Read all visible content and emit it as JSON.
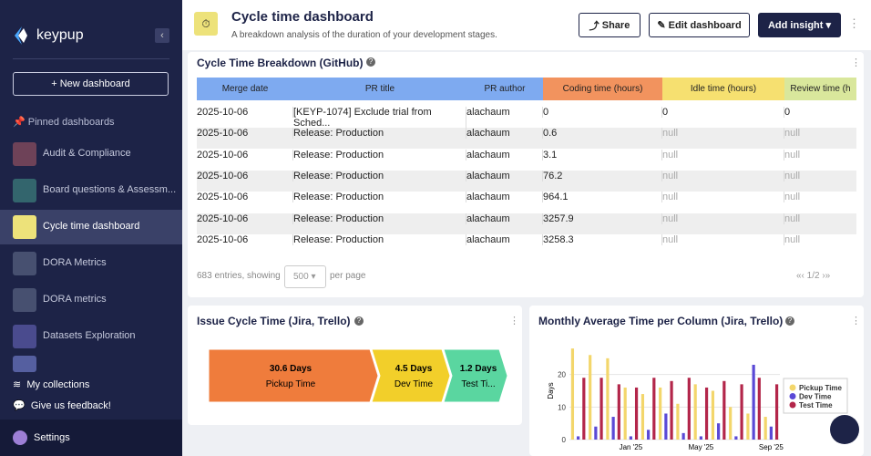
{
  "sidebar": {
    "brand": "keypup",
    "new_dashboard": "New dashboard",
    "pinned": "Pinned dashboards",
    "items": [
      {
        "label": "Audit & Compliance",
        "color": "#8a4d5e"
      },
      {
        "label": "Board questions & Assessm...",
        "color": "#3b7c7a"
      },
      {
        "label": "Cycle time dashboard",
        "color": "#ede27a"
      },
      {
        "label": "DORA Metrics",
        "color": "#55607e"
      },
      {
        "label": "DORA metrics",
        "color": "#55607e"
      },
      {
        "label": "Datasets Exploration",
        "color": "#5a5aa6"
      }
    ],
    "collections": "My collections",
    "feedback": "Give us feedback!",
    "settings": "Settings"
  },
  "header": {
    "title": "Cycle time dashboard",
    "subtitle": "A breakdown analysis of the duration of your development stages.",
    "share": "Share",
    "edit": "Edit dashboard",
    "add": "Add insight"
  },
  "table_panel": {
    "title": "Cycle Time Breakdown (GitHub)",
    "columns": [
      {
        "label": "Merge date",
        "color": "#7eaaf0"
      },
      {
        "label": "PR title",
        "color": "#7eaaf0"
      },
      {
        "label": "PR author",
        "color": "#7eaaf0"
      },
      {
        "label": "Coding time (hours)",
        "color": "#f2935e"
      },
      {
        "label": "Idle time (hours)",
        "color": "#f6e070"
      },
      {
        "label": "Review time (h",
        "color": "#d9e79c"
      }
    ],
    "rows": [
      [
        "2025-10-06",
        "[KEYP-1074] Exclude trial from Sched...",
        "alachaum",
        0,
        0,
        0
      ],
      [
        "2025-10-06",
        "Release: Production",
        "alachaum",
        0.6,
        "null",
        "null"
      ],
      [
        "2025-10-06",
        "Release: Production",
        "alachaum",
        3.1,
        "null",
        "null"
      ],
      [
        "2025-10-06",
        "Release: Production",
        "alachaum",
        76.2,
        "null",
        "null"
      ],
      [
        "2025-10-06",
        "Release: Production",
        "alachaum",
        964.1,
        "null",
        "null"
      ],
      [
        "2025-10-06",
        "Release: Production",
        "alachaum",
        3257.9,
        "null",
        "null"
      ],
      [
        "2025-10-06",
        "Release: Production",
        "alachaum",
        3258.3,
        "null",
        "null"
      ]
    ],
    "footer": {
      "entries": "683 entries, showing",
      "page_size": "500",
      "per_page": "per page",
      "page": "1/2"
    }
  },
  "funnel": {
    "title": "Issue Cycle Time (Jira, Trello)",
    "stages": [
      {
        "value": "30.6 Days",
        "label": "Pickup Time",
        "color": "#ef7c3c"
      },
      {
        "value": "4.5 Days",
        "label": "Dev Time",
        "color": "#f2cf2a"
      },
      {
        "value": "1.2 Days",
        "label": "Test Ti...",
        "color": "#5ad6a0"
      }
    ]
  },
  "chart": {
    "type": "bar",
    "title": "Monthly Average Time per Column (Jira, Trello)",
    "y_label": "Days",
    "categories": [
      null,
      null,
      null,
      "Jan '25",
      null,
      null,
      null,
      "May '25",
      null,
      null,
      null,
      "Sep '25"
    ],
    "ylim": [
      0,
      30
    ],
    "yticks": [
      0,
      10,
      20
    ],
    "series": [
      {
        "name": "Pickup Time",
        "color": "#f3d66b",
        "values": [
          28,
          26,
          25,
          16,
          14,
          16,
          11,
          17,
          15,
          10,
          8,
          7
        ]
      },
      {
        "name": "Dev Time",
        "color": "#5a49d6",
        "values": [
          1,
          4,
          7,
          1,
          3,
          8,
          2,
          1,
          5,
          1,
          23,
          4
        ]
      },
      {
        "name": "Test Time",
        "color": "#b3264a",
        "values": [
          19,
          19,
          17,
          16,
          19,
          18,
          19,
          16,
          18,
          17,
          19,
          17
        ]
      }
    ]
  }
}
